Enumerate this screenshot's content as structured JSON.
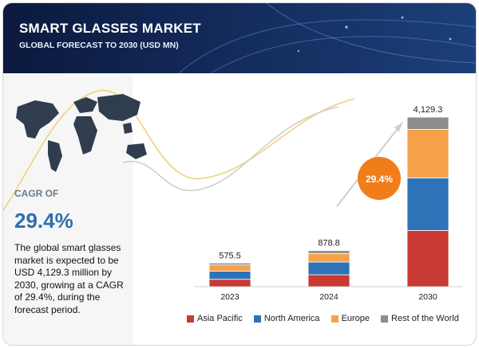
{
  "header": {
    "title": "SMART GLASSES MARKET",
    "subtitle": "GLOBAL FORECAST TO 2030 (USD MN)"
  },
  "sidebar": {
    "cagr_label": "CAGR OF",
    "cagr_value": "29.4%",
    "description": "The global smart glasses market is expected to be USD 4,129.3 million by 2030, growing at a CAGR of 29.4%, during the forecast period."
  },
  "chart_data": {
    "type": "bar",
    "stacked": true,
    "title": "SMART GLASSES MARKET",
    "subtitle": "GLOBAL FORECAST TO 2030 (USD MN)",
    "categories": [
      "2023",
      "2024",
      "2030"
    ],
    "totals": [
      "575.5",
      "878.8",
      "4,129.3"
    ],
    "series": [
      {
        "name": "Asia Pacific",
        "color": "#c83a32",
        "values": [
          180,
          290,
          1370
        ]
      },
      {
        "name": "North America",
        "color": "#2e73b8",
        "values": [
          200,
          310,
          1280
        ]
      },
      {
        "name": "Europe",
        "color": "#f5a14a",
        "values": [
          150,
          210,
          1180
        ]
      },
      {
        "name": "Rest of the World",
        "color": "#8c8c8c",
        "values": [
          45.5,
          68.8,
          299.3
        ]
      }
    ],
    "annotation": "29.4%",
    "annotation_color": "#f07d1a",
    "ylim": [
      0,
      4500
    ]
  }
}
